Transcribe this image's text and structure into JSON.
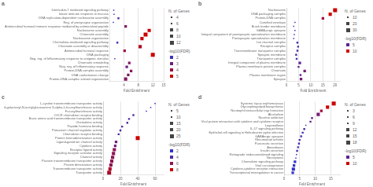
{
  "chart_data": [
    {
      "type": "scatter",
      "title": "a",
      "orientation": "horizontal",
      "marker": "square",
      "grid": "x",
      "categories": [
        "Interleukin-7 mediated signaling pathway",
        "Innate immune response in mucosa",
        "DNA replication-dependent nucleosome assembly",
        "Reg. of presynapse organization",
        "Antimicrobial humoral immune response mediated by antimicrobial peptide",
        "Nucleosome assembly",
        "Chromatin assembly",
        "Nucleosome organization",
        "Chemokine-mediated signaling pathway",
        "Chromatin assembly or disassembly",
        "Antimicrobial humoral response",
        "DNA packaging",
        "Neg. reg. of Inflammatory response to antigenic stimulus",
        "Chromatin remodeling",
        "Neg. reg. of Inflammatory response",
        "Protein-DNA complex assembly",
        "DNA conformation change",
        "Protein-DNA complex subunit organization"
      ],
      "values": [
        1.2,
        1.3,
        2.5,
        1.1,
        4.5,
        11,
        10,
        9,
        2.2,
        8.5,
        4.2,
        12,
        1.5,
        5.5,
        4.8,
        6,
        5.2,
        4.5
      ],
      "n_genes": [
        4,
        4,
        6,
        4,
        8,
        10,
        12,
        10,
        6,
        10,
        8,
        12,
        4,
        8,
        8,
        8,
        8,
        10
      ],
      "fdr": [
        2.0,
        2.0,
        2.5,
        1.8,
        3.5,
        5.0,
        5.0,
        5.0,
        2.0,
        4.5,
        4.0,
        5.0,
        2.0,
        3.5,
        3.0,
        3.5,
        3.5,
        3.5
      ],
      "xlabel": "Fold Enrichment",
      "xlim": [
        0,
        15
      ],
      "xticks": [
        4,
        8,
        12,
        15
      ],
      "n_genes_range": [
        4,
        12
      ],
      "fdr_range": [
        1.8,
        5.0
      ],
      "fdr_colors": [
        "#3333cc",
        "#cc0000"
      ],
      "size_legend": {
        "title": "N. of Genes",
        "values": [
          4,
          6,
          8,
          10,
          12
        ],
        "color": "#444444"
      },
      "fdr_legend": {
        "title": "-log10(FDR)",
        "values": [
          2,
          3,
          4,
          5
        ]
      }
    },
    {
      "type": "scatter",
      "title": "b",
      "orientation": "horizontal",
      "marker": "square",
      "grid": "x",
      "categories": [
        "Nucleosome",
        "DNA packaging complex",
        "Protein-DNA complex",
        "Cornified envelope",
        "Brush border membrane",
        "GABA-ergic synapse",
        "Integral component of postsynaptic specialization membrane",
        "Postsynaptic specialization membrane",
        "Ion channel complex",
        "Receptor complex",
        "Transmembrane transporter complex",
        "Synaptic membrane",
        "Transporter complex",
        "Integral component of plasma membrane",
        "Plasma membrane protein complex",
        "Chromatin",
        "Plasma membrane region",
        "Synapse"
      ],
      "values": [
        20,
        18,
        15,
        3.5,
        3.0,
        3.5,
        3.2,
        3.0,
        4.5,
        4.8,
        4.5,
        4.0,
        4.2,
        5.5,
        5.0,
        7.5,
        5.8,
        6.0
      ],
      "n_genes": [
        30,
        25,
        20,
        10,
        10,
        10,
        10,
        10,
        15,
        15,
        15,
        15,
        15,
        20,
        15,
        20,
        15,
        20
      ],
      "fdr": [
        10,
        10,
        8,
        3,
        3,
        3,
        3,
        3,
        4,
        4,
        4,
        4,
        4,
        5,
        5,
        6,
        5,
        6
      ],
      "xlabel": "Fold Enrichment",
      "xlim": [
        0,
        22
      ],
      "xticks": [
        0,
        5,
        10,
        15,
        20
      ],
      "n_genes_range": [
        10,
        30
      ],
      "fdr_range": [
        3,
        10
      ],
      "fdr_colors": [
        "#3333cc",
        "#cc0000"
      ],
      "size_legend": {
        "title": "N. of Genes",
        "values": [
          10,
          20,
          30
        ],
        "color": "#444444"
      },
      "fdr_legend": {
        "title": "-log10(FDR)",
        "values": [
          5,
          10
        ]
      }
    },
    {
      "type": "scatter",
      "title": "c",
      "orientation": "horizontal",
      "marker": "square",
      "grid": "x",
      "categories": [
        "L-cystine transmembrane transporter activity",
        "4-galactosyl-N-acetylglucosamine 3-alpha-L-fucosyltransferase activity",
        "Fucosyltransferase activity",
        "CXCR chemokine receptor binding",
        "Basic amino acid transmembrane transporter activity",
        "Chemokine activity",
        "Peptide hormone binding",
        "Potassium channel regulator activity",
        "Chemokine receptor binding",
        "Protein heterodimerization activity",
        "Ligand-gated ion channel activity",
        "Cytokine activity",
        "Receptor ligand activity",
        "Signaling receptor activator activity",
        "Channel activity",
        "Passive transmembrane transporter activity",
        "Protein dimerization activity",
        "Transmembrane transporter activity",
        "Transporter activity"
      ],
      "values": [
        60,
        55,
        50,
        35,
        30,
        28,
        22,
        20,
        18,
        40,
        15,
        14,
        13,
        12,
        11,
        10,
        9,
        8,
        7
      ],
      "n_genes": [
        5,
        5,
        5,
        10,
        10,
        10,
        10,
        10,
        10,
        25,
        15,
        15,
        20,
        20,
        20,
        20,
        20,
        20,
        25
      ],
      "fdr": [
        3,
        3,
        3,
        4,
        4,
        4,
        4,
        4,
        4,
        8,
        5,
        5,
        6,
        6,
        6,
        6,
        6,
        7,
        7
      ],
      "xlabel": "Fold Enrichment",
      "xlim": [
        0,
        70
      ],
      "xticks": [
        0,
        20,
        40,
        60
      ],
      "n_genes_range": [
        5,
        25
      ],
      "fdr_range": [
        3,
        8
      ],
      "fdr_colors": [
        "#3333cc",
        "#cc0000"
      ],
      "size_legend": {
        "title": "N. of Genes",
        "values": [
          5,
          10,
          15,
          20,
          25
        ],
        "color": "#444444"
      },
      "fdr_legend": {
        "title": "-log10(FDR)",
        "values": [
          2,
          4,
          6,
          8
        ]
      }
    },
    {
      "type": "scatter",
      "title": "d",
      "orientation": "horizontal",
      "marker": "square",
      "grid": "x",
      "categories": [
        "Systemic lupus erythematosus",
        "Glycosphingolipid biosynthesis",
        "Neutrophil extracellular trap formation",
        "Alcoholism",
        "Nicotine addiction",
        "Viral protein interaction with cytokine and cytokine receptor",
        "Legionellosis",
        "IL-17 signaling pathway",
        "Epithelial cell signaling in Helicobacter pylori infection",
        "GABAergic synapse",
        "Rheumatoid arthritis",
        "Pancreatic secretion",
        "Amoebiasis",
        "Insulin secretion",
        "Retrograde endocannabinoid signaling",
        "Necroptosis",
        "Chemokine signaling pathway",
        "Viral carcinogenesis",
        "Cytokine-cytokine receptor interaction",
        "Transcriptional misregulation in cancer"
      ],
      "values": [
        16,
        14,
        12,
        11,
        9,
        8.5,
        7,
        6.5,
        6,
        5.5,
        5,
        4.8,
        4.5,
        4.2,
        4.0,
        3.8,
        3.5,
        3.2,
        3.0,
        2.8
      ],
      "n_genes": [
        18,
        15,
        12,
        15,
        9,
        9,
        6,
        9,
        9,
        9,
        9,
        9,
        9,
        9,
        6,
        6,
        12,
        12,
        15,
        12
      ],
      "fdr": [
        10,
        10,
        8,
        6,
        5,
        5,
        4,
        4,
        4,
        4,
        4,
        4,
        4,
        4,
        3,
        3,
        3,
        3,
        3,
        3
      ],
      "xlabel": "Fold Enrichment",
      "xlim": [
        0,
        18
      ],
      "xticks": [
        0,
        5,
        10,
        15
      ],
      "n_genes_range": [
        6,
        18
      ],
      "fdr_range": [
        3,
        10
      ],
      "fdr_colors": [
        "#3333cc",
        "#cc0000"
      ],
      "size_legend": {
        "title": "N. of Genes",
        "values": [
          3,
          6,
          9,
          12,
          15,
          18
        ],
        "color": "#444444"
      },
      "fdr_legend": {
        "title": "-log10(FDR)",
        "values": [
          5,
          10
        ]
      }
    }
  ]
}
